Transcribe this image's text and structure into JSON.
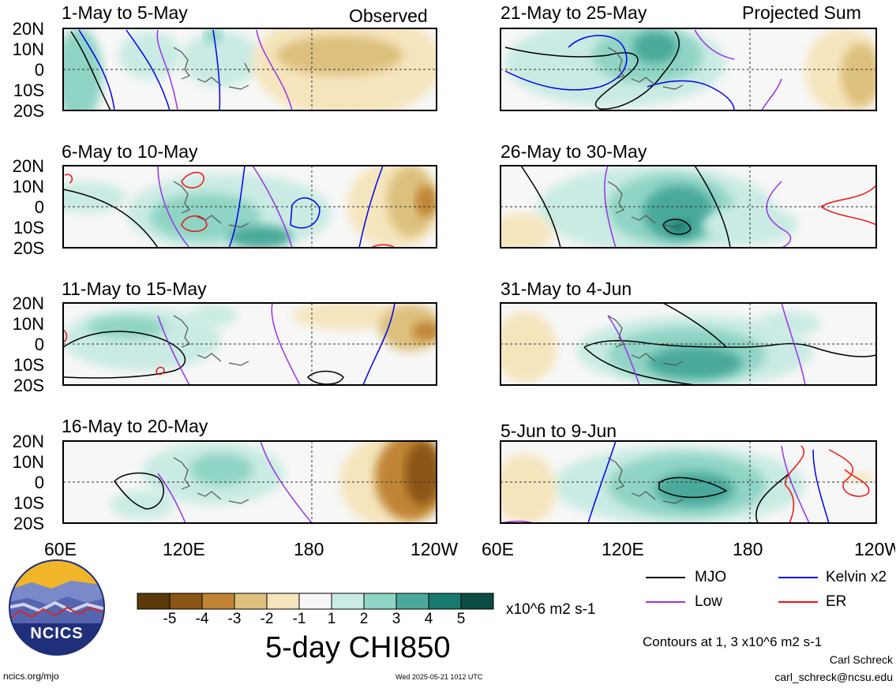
{
  "header": {
    "observed_label": "Observed",
    "projected_label": "Projected Sum"
  },
  "panels": {
    "left": [
      {
        "title": "1-May to 5-May"
      },
      {
        "title": "6-May to 10-May"
      },
      {
        "title": "11-May to 15-May"
      },
      {
        "title": "16-May to 20-May"
      }
    ],
    "right": [
      {
        "title": "21-May to 25-May"
      },
      {
        "title": "26-May to 30-May"
      },
      {
        "title": "31-May to 4-Jun"
      },
      {
        "title": "5-Jun to 9-Jun"
      }
    ]
  },
  "axes": {
    "lat_labels": [
      "20N",
      "10N",
      "0",
      "10S",
      "20S"
    ],
    "lon_labels": [
      "60E",
      "120E",
      "180",
      "120W"
    ]
  },
  "colorbar": {
    "tick_labels": [
      "-5",
      "-4",
      "-3",
      "-2",
      "-1",
      "1",
      "2",
      "3",
      "4",
      "5"
    ],
    "colors": [
      "#5b3a0a",
      "#8a5515",
      "#c08434",
      "#ddc07d",
      "#f5e5bd",
      "#f7f7f7",
      "#c9ebe3",
      "#8fd4c4",
      "#4aa99a",
      "#187a6e",
      "#0c4c44"
    ],
    "units": "x10^6 m2 s-1",
    "title": "5-day CHI850"
  },
  "legend": {
    "items": [
      {
        "label": "MJO",
        "color": "#000000"
      },
      {
        "label": "Kelvin x2",
        "color": "#0000ee"
      },
      {
        "label": "Low",
        "color": "#9a32e6"
      },
      {
        "label": "ER",
        "color": "#ee1111"
      }
    ],
    "contours_note": "Contours at 1, 3 x10^6 m2 s-1"
  },
  "footer": {
    "site": "ncics.org/mjo",
    "timestamp": "Wed 2025-05-21 1012 UTC",
    "author": "Carl Schreck",
    "email": "carl_schreck@ncsu.edu"
  },
  "logo": {
    "text": "NCICS"
  }
}
